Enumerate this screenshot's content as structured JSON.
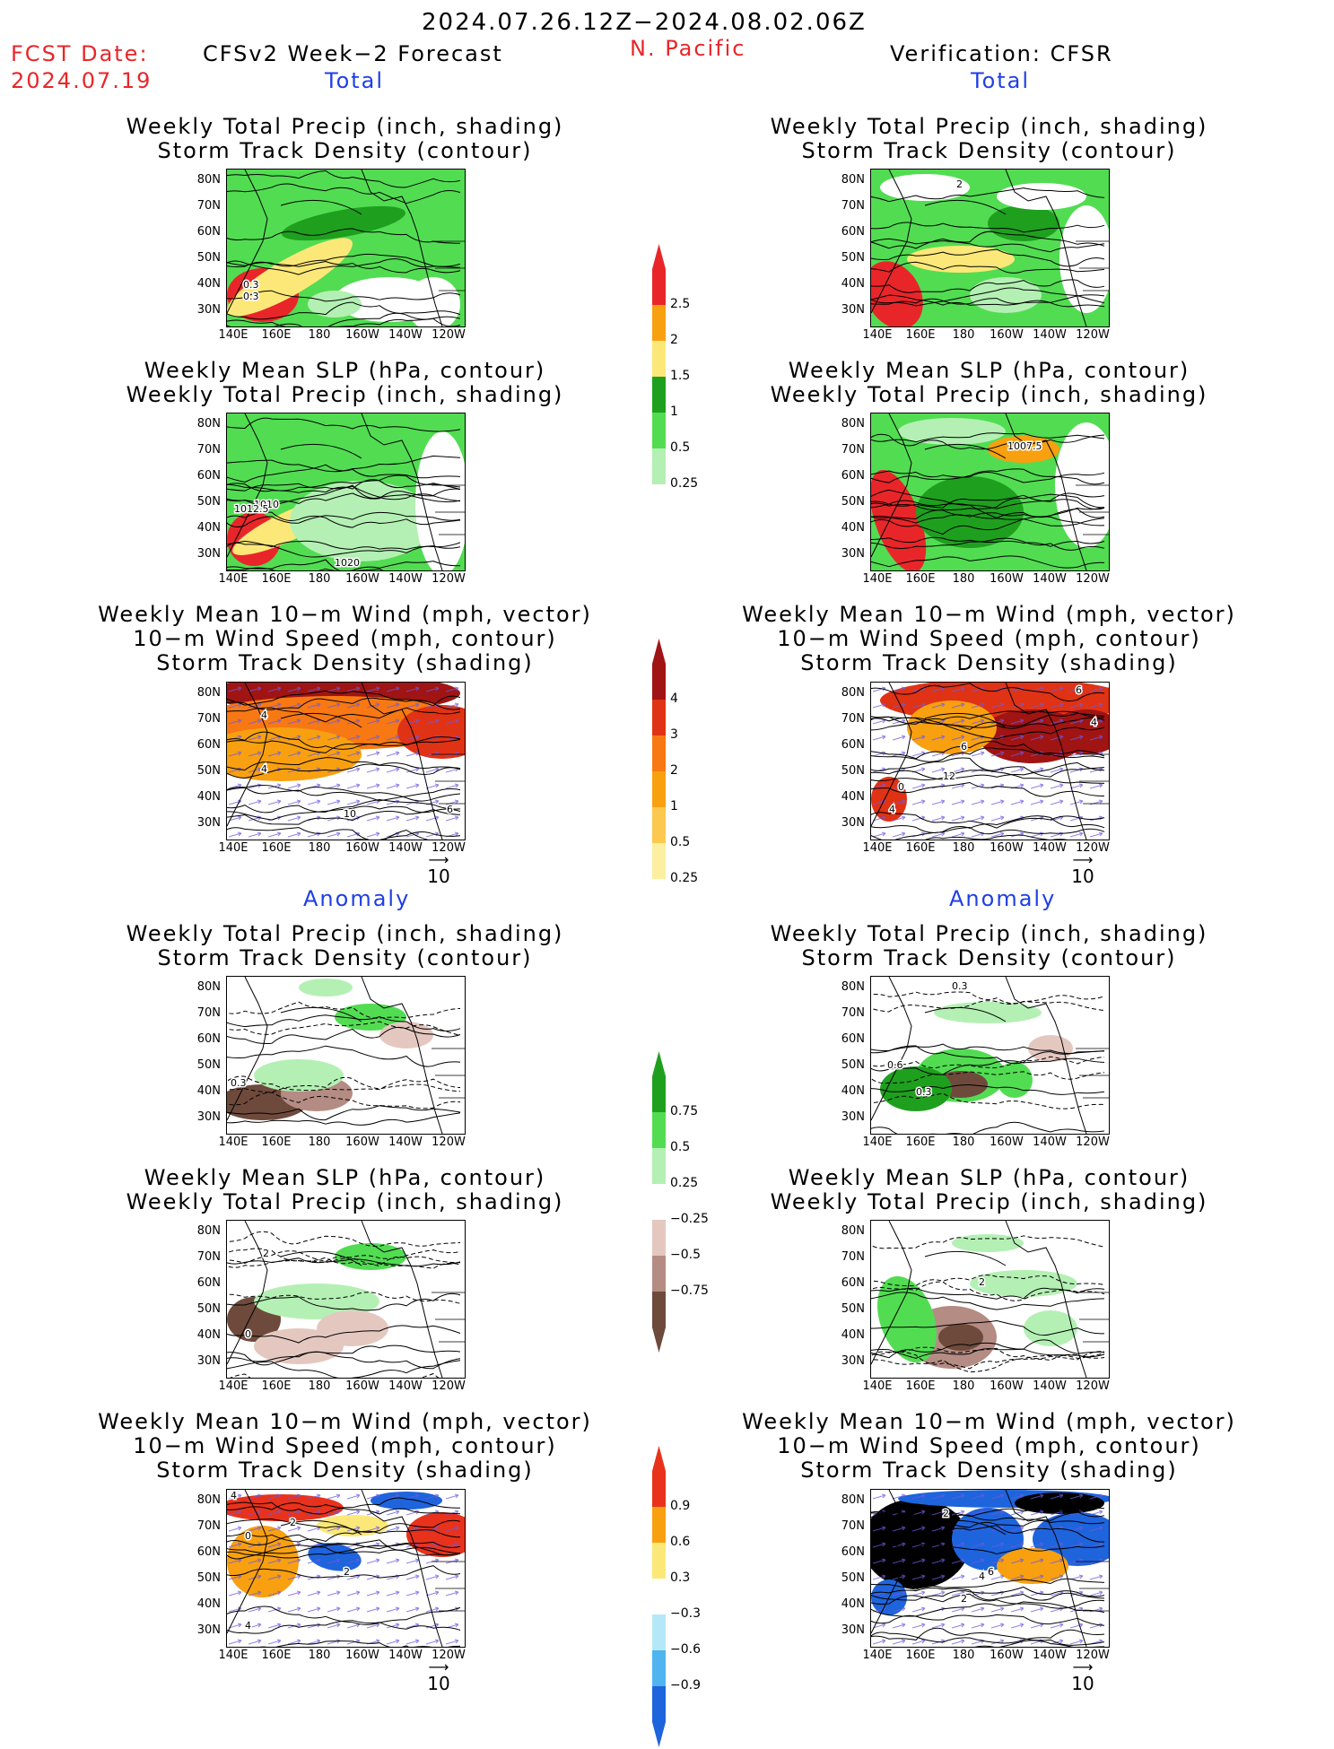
{
  "header": {
    "date_range": "2024.07.26.12Z−2024.08.02.06Z",
    "fcst_date_label": "FCST Date:",
    "fcst_date_value": "2024.07.19",
    "left_title": "CFSv2 Week−2 Forecast",
    "region": "N. Pacific",
    "right_title": "Verification: CFSR"
  },
  "sections": {
    "total": "Total",
    "anomaly": "Anomaly"
  },
  "panel_titles": {
    "precip_storm": [
      "Weekly Total Precip (inch, shading)",
      "Storm Track Density (contour)"
    ],
    "slp_precip": [
      "Weekly Mean SLP (hPa, contour)",
      "Weekly Total Precip (inch, shading)"
    ],
    "wind_storm": [
      "Weekly Mean 10−m Wind (mph, vector)",
      "10−m Wind Speed (mph, contour)",
      "Storm Track Density (shading)"
    ]
  },
  "axes": {
    "lat_ticks": [
      "80N",
      "70N",
      "60N",
      "50N",
      "40N",
      "30N"
    ],
    "lon_ticks": [
      "140E",
      "160E",
      "180",
      "160W",
      "140W",
      "120W"
    ]
  },
  "contour_labels": {
    "fcst_total_precip": [
      "0.3",
      "0.3"
    ],
    "fcst_total_slp": [
      "1010",
      "1012.5",
      "1020"
    ],
    "fcst_total_wind": [
      "4",
      "4",
      "10",
      "6"
    ],
    "ver_total_precip": [
      "2"
    ],
    "ver_total_slp": [
      "1007.5"
    ],
    "ver_total_wind": [
      "6",
      "4",
      "6",
      "12",
      "0",
      "4"
    ],
    "fcst_anom_precip": [
      "0.3"
    ],
    "fcst_anom_slp": [
      "2",
      "0"
    ],
    "fcst_anom_wind": [
      "4",
      "2",
      "0",
      "2",
      "4"
    ],
    "ver_anom_precip": [
      "0.3",
      "0.6",
      "0.3"
    ],
    "ver_anom_slp": [
      "2"
    ],
    "ver_anom_wind": [
      "2",
      "6",
      "4",
      "2"
    ]
  },
  "colorbars": {
    "total_precip": {
      "labels": [
        "2.5",
        "2",
        "1.5",
        "1",
        "0.5",
        "0.25"
      ],
      "colors": [
        "#e8262a",
        "#f8a010",
        "#fce878",
        "#1ea01e",
        "#52dc52",
        "#b4f0b4"
      ]
    },
    "total_storm": {
      "labels": [
        "4",
        "3",
        "2",
        "1",
        "0.5",
        "0.25"
      ],
      "colors": [
        "#a01414",
        "#e03214",
        "#f87814",
        "#f8a010",
        "#fcc850",
        "#fcf0a0"
      ]
    },
    "anom_precip": {
      "labels": [
        "0.75",
        "0.5",
        "0.25",
        "−0.25",
        "−0.5",
        "−0.75"
      ],
      "colors": [
        "#1ea01e",
        "#52dc52",
        "#b4f0b4",
        "#ffffff",
        "#e4c8c0",
        "#b48c84",
        "#6e4a3c"
      ]
    },
    "anom_storm": {
      "labels": [
        "0.9",
        "0.6",
        "0.3",
        "−0.3",
        "−0.6",
        "−0.9"
      ],
      "colors": [
        "#e8321c",
        "#f8a010",
        "#fce878",
        "#ffffff",
        "#b4e8f8",
        "#50b4f0",
        "#1e64dc"
      ]
    }
  },
  "vector_reference": "10"
}
